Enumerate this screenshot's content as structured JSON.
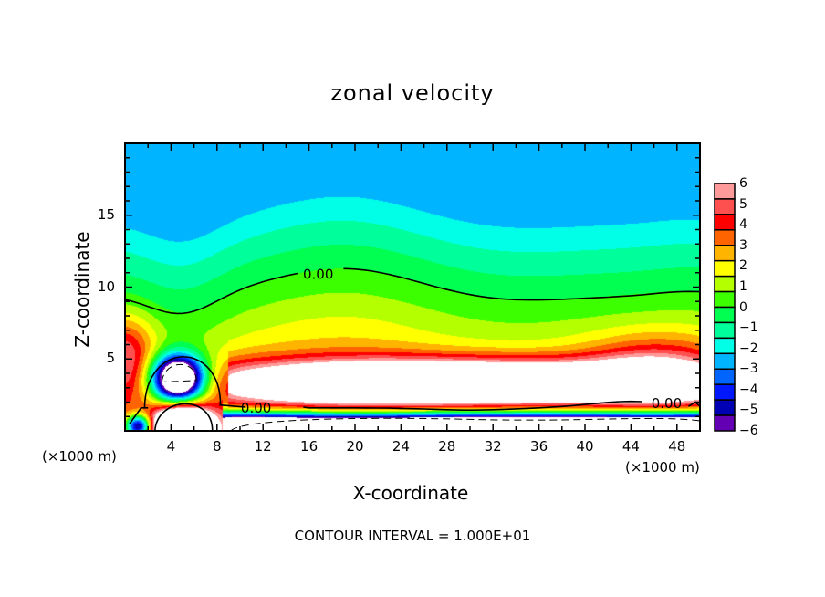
{
  "chart_data": {
    "type": "heatmap",
    "title": "zonal velocity",
    "xlabel": "X-coordinate",
    "ylabel": "Z-coordinate",
    "x_unit_label": "(×1000 m)",
    "xlim": [
      0,
      50
    ],
    "ylim": [
      0,
      20
    ],
    "x_ticks": [
      4,
      8,
      12,
      16,
      20,
      24,
      28,
      32,
      36,
      40,
      44,
      48
    ],
    "y_ticks": [
      5,
      10,
      15
    ],
    "colorbar": {
      "range": [
        -6,
        6
      ],
      "labels": [
        "6",
        "5",
        "4",
        "3",
        "2",
        "1",
        "0",
        "-1",
        "-2",
        "-3",
        "-4",
        "-5",
        "-6"
      ],
      "colors": [
        "#ff9a9a",
        "#ff5050",
        "#ff0000",
        "#ff6400",
        "#ffb400",
        "#ffff00",
        "#b4ff00",
        "#3cff00",
        "#00ff50",
        "#00ff9a",
        "#00ffe6",
        "#00b4ff",
        "#0064ff",
        "#0018ff",
        "#0000b4",
        "#6400b4"
      ]
    },
    "contour_labels": [
      "0.00",
      "0.00",
      "0.00"
    ],
    "contour_interval_text": "CONTOUR INTERVAL = 1.000E+01",
    "features": [
      {
        "name": "upper zero contour",
        "z_approx_range": [
          8,
          11.3
        ]
      },
      {
        "name": "jet core (>6, white)",
        "x_range": [
          10,
          49
        ],
        "z_range": [
          2.5,
          4.5
        ]
      },
      {
        "name": "near-surface negative (<-6, white)",
        "x_range": [
          9,
          50
        ],
        "z_range": [
          0,
          1
        ]
      },
      {
        "name": "negative vortex",
        "x_center": 4.5,
        "z_center": 3.8
      },
      {
        "name": "positive vortex near surface",
        "x_center": 5,
        "z_center": 0.5
      }
    ],
    "grid": false
  }
}
